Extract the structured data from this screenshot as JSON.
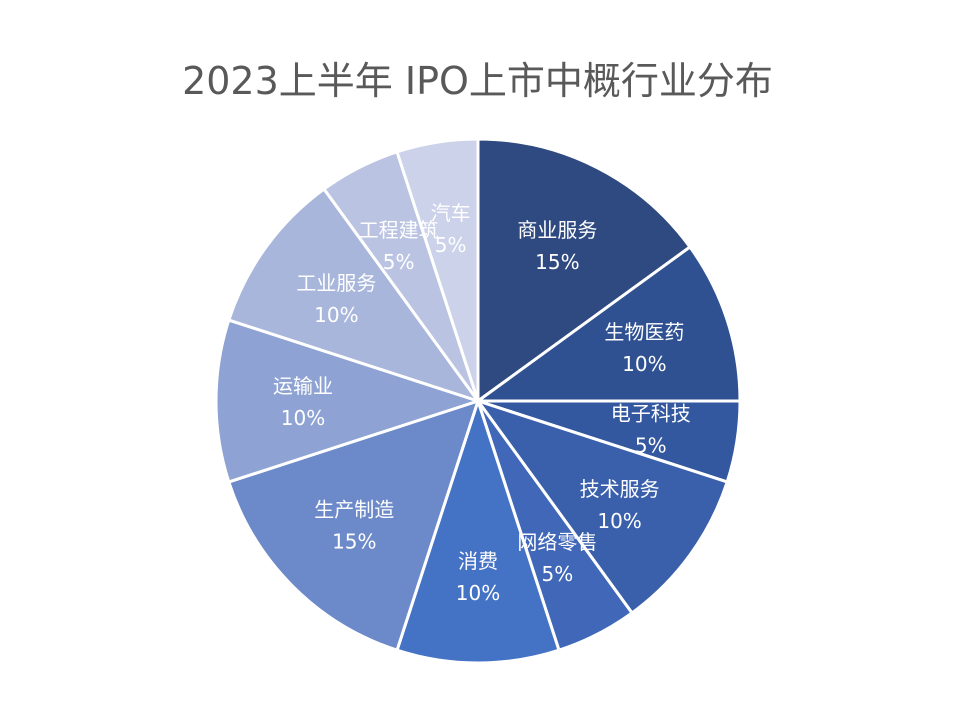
{
  "chart_data": {
    "type": "pie",
    "title": "2023上半年 IPO上市中概行业分布",
    "start_angle_deg": 0,
    "direction": "clockwise",
    "legend": "none",
    "slices": [
      {
        "label": "商业服务",
        "value": 15,
        "value_label": "15%",
        "color": "#2E4A80"
      },
      {
        "label": "生物医药",
        "value": 10,
        "value_label": "10%",
        "color": "#2F5191"
      },
      {
        "label": "电子科技",
        "value": 5,
        "value_label": "5%",
        "color": "#3358A0"
      },
      {
        "label": "技术服务",
        "value": 10,
        "value_label": "10%",
        "color": "#3A60AC"
      },
      {
        "label": "网络零售",
        "value": 5,
        "value_label": "5%",
        "color": "#4067B8"
      },
      {
        "label": "消费",
        "value": 10,
        "value_label": "10%",
        "color": "#4472C4"
      },
      {
        "label": "生产制造",
        "value": 15,
        "value_label": "15%",
        "color": "#6C89C9"
      },
      {
        "label": "运输业",
        "value": 10,
        "value_label": "10%",
        "color": "#8EA3D3"
      },
      {
        "label": "工业服务",
        "value": 10,
        "value_label": "10%",
        "color": "#A8B6DB"
      },
      {
        "label": "工程建筑",
        "value": 5,
        "value_label": "5%",
        "color": "#BAC4E2"
      },
      {
        "label": "汽车",
        "value": 5,
        "value_label": "5%",
        "color": "#CBD2E9"
      }
    ]
  }
}
